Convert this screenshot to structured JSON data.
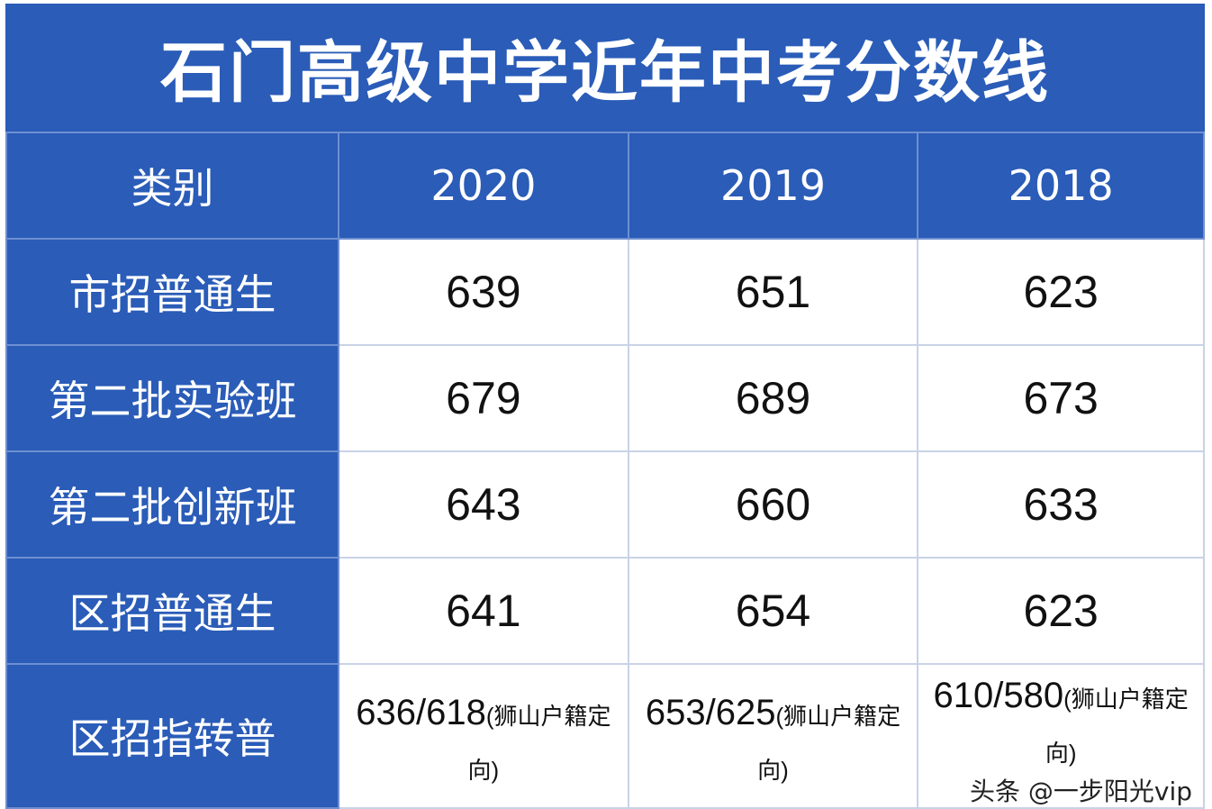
{
  "title": "石门高级中学近年中考分数线",
  "headers": [
    "类别",
    "2020",
    "2019",
    "2018"
  ],
  "rows": [
    {
      "category": "市招普通生",
      "values": [
        "639",
        "651",
        "623"
      ]
    },
    {
      "category": "第二批实验班",
      "values": [
        "679",
        "689",
        "673"
      ]
    },
    {
      "category": "第二批创新班",
      "values": [
        "643",
        "660",
        "633"
      ]
    },
    {
      "category": "区招普通生",
      "values": [
        "641",
        "654",
        "623"
      ]
    }
  ],
  "last_row": {
    "category": "区招指转普",
    "values": [
      {
        "score": "636/618",
        "note": "(狮山户籍定向)"
      },
      {
        "score": "653/625",
        "note": "(狮山户籍定向)"
      },
      {
        "score": "610/580",
        "note": "(狮山户籍定向)"
      }
    ]
  },
  "watermark": "头条 @一步阳光vip",
  "colors": {
    "header_blue": "#2a5cb8",
    "cell_bg": "#ffffff"
  }
}
